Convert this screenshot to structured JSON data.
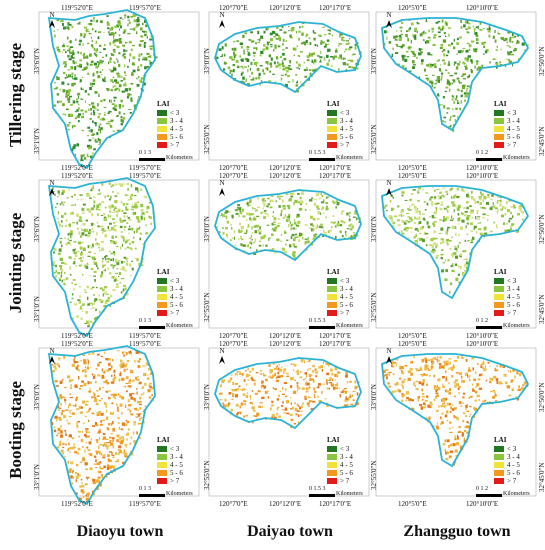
{
  "rows": [
    {
      "label": "Tillering stage"
    },
    {
      "label": "Jointing stage"
    },
    {
      "label": "Booting stage"
    }
  ],
  "columns": [
    {
      "label": "Diaoyu town",
      "top_ticks": [
        "119°52'0\"E",
        "119°57'0\"E"
      ],
      "bottom_ticks": [
        "119°52'0\"E",
        "119°57'0\"E"
      ],
      "left_ticks": [
        "33°6'0\"N",
        "33°1'0\"N"
      ],
      "scale": {
        "numbers": [
          "0",
          "1",
          "3"
        ],
        "unit": "Kilometers"
      }
    },
    {
      "label": "Daiyao town",
      "top_ticks": [
        "120°7'0\"E",
        "120°12'0\"E",
        "120°17'0\"E"
      ],
      "bottom_ticks": [
        "120°7'0\"E",
        "120°12'0\"E",
        "120°17'0\"E"
      ],
      "left_ticks": [
        "33°0'0\"N",
        "32°55'0\"N"
      ],
      "scale": {
        "numbers": [
          "0",
          "1.5",
          "3"
        ],
        "unit": "Kilometers"
      }
    },
    {
      "label": "Zhangguo town",
      "top_ticks": [
        "120°5'0\"E",
        "120°10'0\"E"
      ],
      "bottom_ticks": [
        "120°5'0\"E",
        "120°10'0\"E"
      ],
      "left_ticks": [
        "33°0'0\"N",
        "32°55'0\"N"
      ],
      "right_ticks": [
        "32°50'0\"N",
        "32°45'0\"N"
      ],
      "scale": {
        "numbers": [
          "0",
          "1",
          "2"
        ],
        "unit": "Kilometers"
      }
    }
  ],
  "north_label": "N",
  "legend": {
    "title": "LAI",
    "items": [
      {
        "label": "< 3",
        "color": "#1f7a1f"
      },
      {
        "label": "3 - 4",
        "color": "#8cc63f"
      },
      {
        "label": "4 - 5",
        "color": "#f2e33a"
      },
      {
        "label": "5 - 6",
        "color": "#f39a1e"
      },
      {
        "label": "> 7",
        "color": "#e31a1c"
      }
    ]
  },
  "boundary_color": "#2bb3d6",
  "stage_palettes": [
    [
      "#2e8b2e",
      "#5aa02c",
      "#8cc63f",
      "#6fae2a"
    ],
    [
      "#5aa02c",
      "#8cc63f",
      "#a9cf4a",
      "#cfe07a"
    ],
    [
      "#f39a1e",
      "#f4b43a",
      "#e8c24a",
      "#e07a1a"
    ]
  ]
}
